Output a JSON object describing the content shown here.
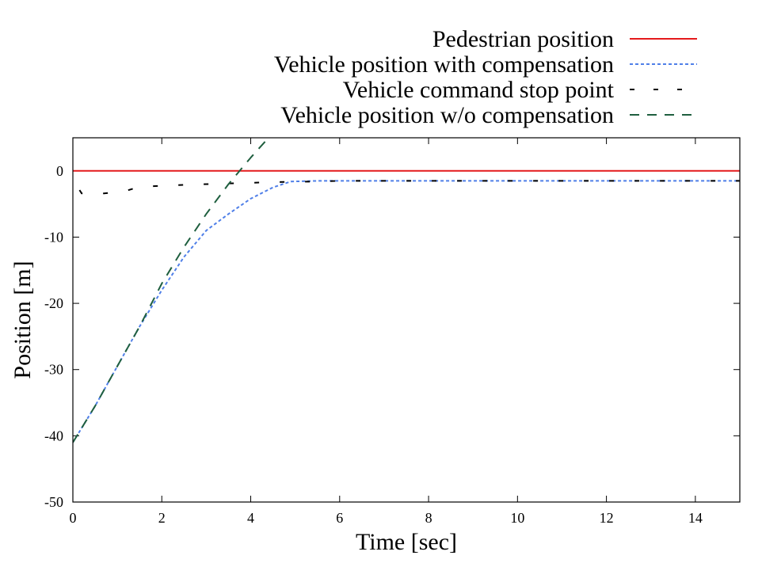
{
  "chart_data": {
    "type": "line",
    "xlabel": "Time [sec]",
    "ylabel": "Position [m]",
    "xlim": [
      0,
      15
    ],
    "ylim": [
      -50,
      5
    ],
    "xticks": [
      0,
      2,
      4,
      6,
      8,
      10,
      12,
      14
    ],
    "yticks": [
      -50,
      -40,
      -30,
      -20,
      -10,
      0
    ],
    "legend_position": "top-right, above plot",
    "series": [
      {
        "name": "Pedestrian position",
        "color": "#e41a1c",
        "dash": "solid",
        "x": [
          0,
          15
        ],
        "y": [
          0,
          0
        ]
      },
      {
        "name": "Vehicle position with compensation",
        "color": "#4f7fe8",
        "dash": "dotted",
        "x": [
          0,
          0.5,
          1,
          1.5,
          2,
          2.5,
          3,
          3.5,
          4,
          4.5,
          4.9,
          5.5,
          6,
          8,
          10,
          12,
          15
        ],
        "y": [
          -41,
          -35.5,
          -29.5,
          -23.5,
          -18,
          -13,
          -9,
          -6.5,
          -4.2,
          -2.5,
          -1.6,
          -1.5,
          -1.5,
          -1.5,
          -1.5,
          -1.5,
          -1.5
        ]
      },
      {
        "name": "Vehicle command stop point",
        "color": "#000000",
        "dash": "dash",
        "x": [
          0.15,
          0.2,
          0.7,
          1.2,
          1.5,
          2.5,
          3.5,
          4.5,
          5.5,
          6,
          8,
          10,
          12,
          14,
          15
        ],
        "y": [
          -2.9,
          -3.4,
          -3.4,
          -3.0,
          -2.4,
          -2.1,
          -1.9,
          -1.7,
          -1.6,
          -1.5,
          -1.5,
          -1.5,
          -1.5,
          -1.5,
          -1.5
        ]
      },
      {
        "name": "Vehicle position w/o compensation",
        "color": "#1f5f3f",
        "dash": "longdash",
        "x": [
          0,
          0.5,
          1,
          1.5,
          2,
          2.5,
          3,
          3.5,
          4,
          4.4
        ],
        "y": [
          -41,
          -35.5,
          -29.5,
          -23.5,
          -17,
          -11.5,
          -6.5,
          -2,
          2,
          5
        ]
      }
    ]
  }
}
